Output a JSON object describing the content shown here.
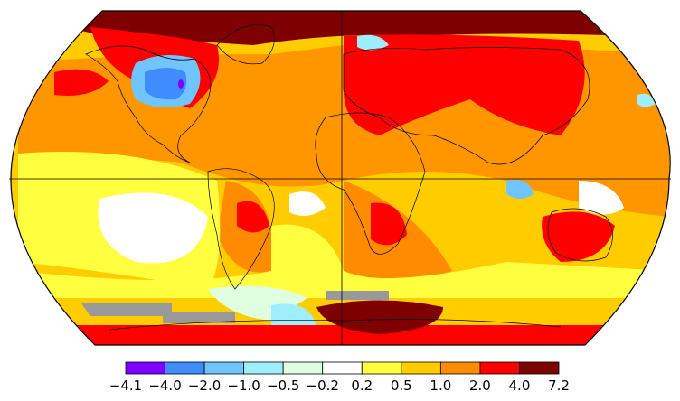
{
  "map": {
    "projection": "Robinson",
    "graticule": "equator and prime meridian",
    "missing_data_color": "#999999"
  },
  "legend": {
    "colors": [
      "#8000ff",
      "#3f8cff",
      "#70c4ff",
      "#9eeeff",
      "#e0ffe0",
      "#ffffff",
      "#ffff40",
      "#ffcc00",
      "#ff8c00",
      "#ff0000",
      "#7f0000"
    ],
    "tick_labels": [
      "−4.1",
      "−4.0",
      "−2.0",
      "−1.0",
      "−0.5",
      "−0.2",
      "0.2",
      "0.5",
      "1.0",
      "2.0",
      "4.0",
      "7.2"
    ]
  }
}
